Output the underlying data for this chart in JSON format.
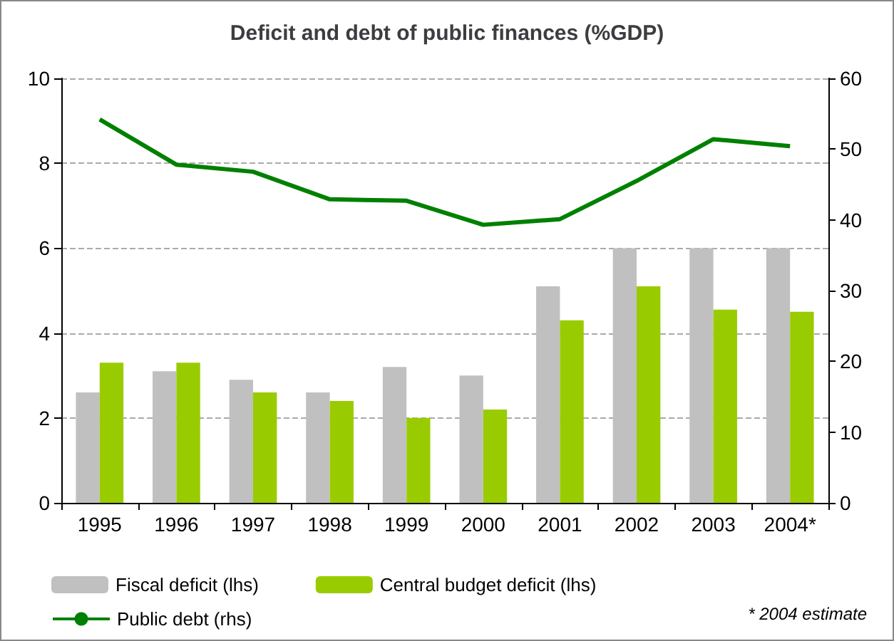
{
  "chart_data": {
    "type": "bar",
    "title": "Deficit and debt of public finances (%GDP)",
    "categories": [
      "1995",
      "1996",
      "1997",
      "1998",
      "1999",
      "2000",
      "2001",
      "2002",
      "2003",
      "2004*"
    ],
    "series": [
      {
        "name": "Fiscal deficit (lhs)",
        "color": "#c0c0c0",
        "values": [
          2.6,
          3.1,
          2.9,
          2.6,
          3.2,
          3.0,
          5.1,
          6.0,
          6.0,
          6.0
        ]
      },
      {
        "name": "Central budget deficit (lhs)",
        "color": "#99cc00",
        "values": [
          3.3,
          3.3,
          2.6,
          2.4,
          2.0,
          2.2,
          4.3,
          5.1,
          4.55,
          4.5
        ]
      },
      {
        "name": "Public debt (rhs)",
        "type": "line",
        "axis": "y2",
        "color": "#008000",
        "values": [
          54.2,
          47.8,
          46.8,
          42.9,
          42.7,
          39.3,
          40.1,
          45.5,
          51.4,
          50.4
        ]
      }
    ],
    "ylim": [
      0,
      10
    ],
    "yticks": [
      0,
      2,
      4,
      6,
      8,
      10
    ],
    "y2lim": [
      0,
      60
    ],
    "y2ticks": [
      0,
      10,
      20,
      30,
      40,
      50,
      60
    ],
    "grid": "y",
    "legend": "bottom",
    "marker": "none",
    "annotations": [
      "* 2004 estimate"
    ]
  }
}
